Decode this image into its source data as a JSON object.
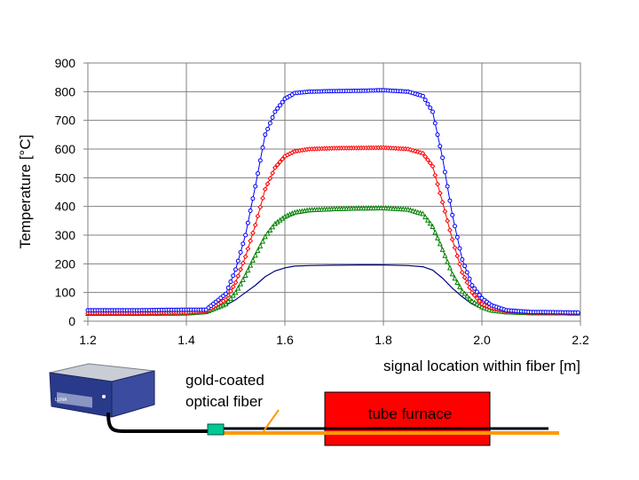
{
  "chart_data": {
    "type": "line",
    "xlabel": "signal location within fiber [m]",
    "ylabel": "Temperature [°C]",
    "xlim": [
      1.2,
      2.2
    ],
    "ylim": [
      0,
      900
    ],
    "x_ticks": [
      "1.2",
      "1.4",
      "1.6",
      "1.8",
      "2.0",
      "2.2"
    ],
    "y_ticks": [
      "0",
      "100",
      "200",
      "300",
      "400",
      "500",
      "600",
      "700",
      "800",
      "900"
    ],
    "grid": "vertical and horizontal gridlines",
    "series": [
      {
        "color": "#0000ff",
        "marker": "circle",
        "x": [
          1.2,
          1.3,
          1.4,
          1.44,
          1.48,
          1.5,
          1.52,
          1.54,
          1.56,
          1.58,
          1.6,
          1.62,
          1.65,
          1.7,
          1.75,
          1.8,
          1.85,
          1.88,
          1.9,
          1.92,
          1.94,
          1.96,
          1.98,
          2.0,
          2.02,
          2.05,
          2.1,
          2.2
        ],
        "y": [
          38,
          38,
          40,
          40,
          95,
          180,
          300,
          470,
          650,
          730,
          775,
          795,
          800,
          802,
          803,
          805,
          800,
          785,
          730,
          570,
          370,
          215,
          125,
          80,
          55,
          38,
          32,
          30
        ]
      },
      {
        "color": "#ff0000",
        "marker": "diamond",
        "x": [
          1.2,
          1.3,
          1.4,
          1.44,
          1.48,
          1.5,
          1.52,
          1.54,
          1.56,
          1.58,
          1.6,
          1.62,
          1.65,
          1.7,
          1.75,
          1.8,
          1.85,
          1.88,
          1.9,
          1.92,
          1.94,
          1.96,
          1.98,
          2.0,
          2.02,
          2.05,
          2.1,
          2.2
        ],
        "y": [
          28,
          28,
          30,
          35,
          75,
          135,
          225,
          335,
          460,
          535,
          575,
          592,
          600,
          603,
          604,
          605,
          600,
          585,
          540,
          415,
          285,
          170,
          100,
          60,
          45,
          35,
          30,
          28
        ]
      },
      {
        "color": "#008000",
        "marker": "triangle",
        "x": [
          1.2,
          1.3,
          1.4,
          1.44,
          1.48,
          1.5,
          1.52,
          1.54,
          1.56,
          1.58,
          1.6,
          1.62,
          1.65,
          1.7,
          1.75,
          1.8,
          1.85,
          1.88,
          1.9,
          1.92,
          1.94,
          1.96,
          1.98,
          2.0,
          2.02,
          2.05,
          2.1,
          2.2
        ],
        "y": [
          27,
          27,
          28,
          33,
          60,
          100,
          160,
          230,
          295,
          340,
          365,
          380,
          388,
          392,
          394,
          395,
          390,
          375,
          330,
          250,
          165,
          105,
          70,
          50,
          38,
          32,
          29,
          28
        ]
      },
      {
        "color": "#000080",
        "marker": "none",
        "x": [
          1.2,
          1.3,
          1.4,
          1.44,
          1.48,
          1.5,
          1.52,
          1.54,
          1.56,
          1.58,
          1.6,
          1.62,
          1.65,
          1.7,
          1.75,
          1.8,
          1.85,
          1.88,
          1.9,
          1.92,
          1.94,
          1.96,
          1.98,
          2.0,
          2.02,
          2.05,
          2.1,
          2.2
        ],
        "y": [
          28,
          28,
          28,
          35,
          55,
          75,
          100,
          125,
          155,
          175,
          186,
          192,
          194,
          195,
          196,
          196,
          194,
          190,
          178,
          150,
          115,
          85,
          60,
          45,
          36,
          31,
          29,
          28
        ]
      }
    ]
  },
  "diagram": {
    "fiber_label_line1": "gold-coated",
    "fiber_label_line2": "optical fiber",
    "furnace_label": "tube furnace",
    "device_brand": "LUNA",
    "colors": {
      "fiber": "#ff9900",
      "cable": "#000000",
      "furnace": "#ff0000",
      "connector": "#00c896",
      "device_body": "#2a3a8a"
    }
  }
}
